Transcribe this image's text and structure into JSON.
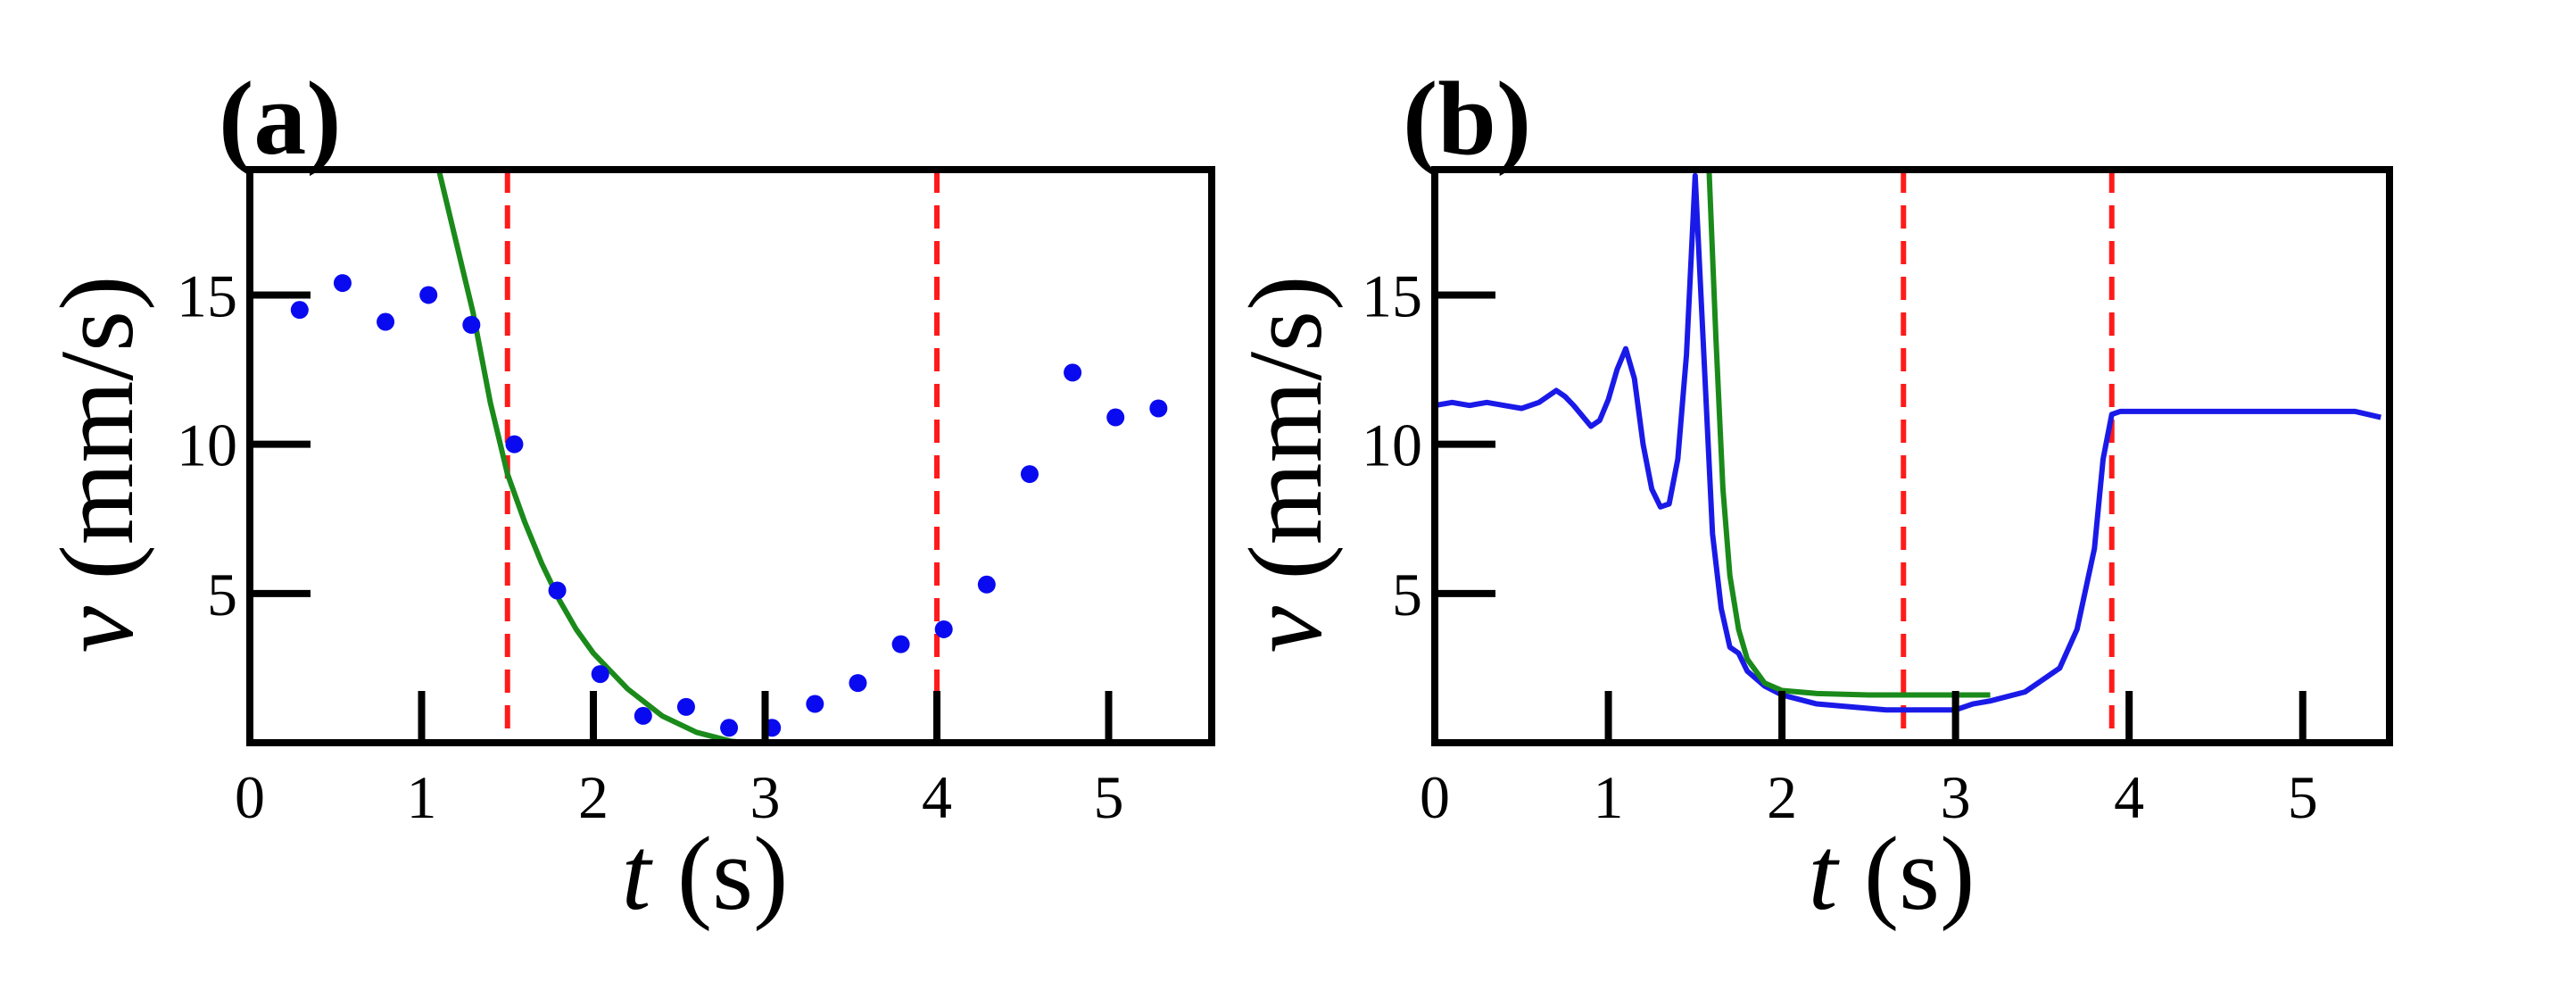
{
  "chart_data": [
    {
      "panel_label": "(a)",
      "type": "scatter",
      "xlabel_var": "t",
      "xlabel_unit": " (s)",
      "ylabel_var": "v",
      "ylabel_unit": " (mm/s)",
      "xlim": [
        0,
        5.6
      ],
      "ylim": [
        0,
        19.2
      ],
      "x_ticks": [
        0,
        1,
        2,
        3,
        4,
        5
      ],
      "x_tick_labels": [
        "0",
        "1",
        "2",
        "3",
        "4",
        "5"
      ],
      "y_ticks": [
        5,
        10,
        15
      ],
      "y_tick_labels": [
        "5",
        "10",
        "15"
      ],
      "grid": false,
      "colors": {
        "points": "#0a0af0",
        "fit": "#1a8a1a",
        "vlines": "#ff1a1a"
      },
      "points": {
        "x": [
          0.29,
          0.54,
          0.79,
          1.04,
          1.29,
          1.54,
          1.79,
          2.04,
          2.29,
          2.54,
          2.79,
          3.04,
          3.29,
          3.54,
          3.79,
          4.04,
          4.29,
          4.54,
          4.79,
          5.04,
          5.29
        ],
        "y": [
          14.5,
          15.4,
          14.1,
          15.0,
          14.0,
          10.0,
          5.1,
          2.3,
          0.9,
          1.2,
          0.5,
          0.5,
          1.3,
          2.0,
          3.3,
          3.8,
          5.3,
          9.0,
          12.4,
          10.9,
          11.2
        ]
      },
      "fit_curve": {
        "x": [
          1.1,
          1.2,
          1.3,
          1.4,
          1.5,
          1.6,
          1.7,
          1.8,
          1.9,
          2.0,
          2.2,
          2.4,
          2.6,
          2.8,
          2.9
        ],
        "y": [
          19.2,
          16.8,
          14.4,
          11.4,
          9.0,
          7.4,
          6.0,
          4.8,
          3.8,
          3.0,
          1.8,
          0.9,
          0.35,
          0.05,
          0.0
        ]
      },
      "vlines": [
        1.5,
        4.0
      ]
    },
    {
      "panel_label": "(b)",
      "type": "line",
      "xlabel_var": "t",
      "xlabel_unit": " (s)",
      "ylabel_var": "v",
      "ylabel_unit": " (mm/s)",
      "xlim": [
        0,
        5.5
      ],
      "ylim": [
        0,
        19.2
      ],
      "x_ticks": [
        0,
        1,
        2,
        3,
        4,
        5
      ],
      "x_tick_labels": [
        "0",
        "1",
        "2",
        "3",
        "4",
        "5"
      ],
      "y_ticks": [
        5,
        10,
        15
      ],
      "y_tick_labels": [
        "5",
        "10",
        "15"
      ],
      "grid": false,
      "colors": {
        "line": "#1a1ae8",
        "fit": "#1a8a1a",
        "vlines": "#ff1a1a"
      },
      "line": {
        "x": [
          0.0,
          0.1,
          0.2,
          0.3,
          0.4,
          0.5,
          0.6,
          0.7,
          0.75,
          0.8,
          0.9,
          0.95,
          1.0,
          1.05,
          1.1,
          1.15,
          1.2,
          1.25,
          1.3,
          1.35,
          1.4,
          1.45,
          1.5,
          1.55,
          1.6,
          1.65,
          1.7,
          1.75,
          1.8,
          1.9,
          2.0,
          2.2,
          2.4,
          2.6,
          2.8,
          3.0,
          3.1,
          3.2,
          3.4,
          3.6,
          3.7,
          3.8,
          3.85,
          3.9,
          3.95,
          4.2,
          4.5,
          4.8,
          5.1,
          5.3,
          5.45
        ],
        "y": [
          11.3,
          11.4,
          11.3,
          11.4,
          11.3,
          11.2,
          11.4,
          11.8,
          11.6,
          11.3,
          10.6,
          10.8,
          11.5,
          12.5,
          13.2,
          12.2,
          10.0,
          8.5,
          7.9,
          8.0,
          9.5,
          13.0,
          19.0,
          13.0,
          7.0,
          4.5,
          3.2,
          3.0,
          2.4,
          1.9,
          1.6,
          1.3,
          1.2,
          1.1,
          1.1,
          1.1,
          1.3,
          1.4,
          1.7,
          2.5,
          3.8,
          6.5,
          9.5,
          11.0,
          11.1,
          11.1,
          11.1,
          11.1,
          11.1,
          11.1,
          10.9
        ]
      },
      "fit_curve": {
        "x": [
          1.58,
          1.62,
          1.66,
          1.7,
          1.75,
          1.8,
          1.9,
          2.0,
          2.2,
          2.5,
          2.8,
          3.0,
          3.2
        ],
        "y": [
          19.2,
          13.5,
          8.5,
          5.6,
          3.8,
          2.8,
          2.0,
          1.75,
          1.65,
          1.6,
          1.6,
          1.6,
          1.6
        ]
      },
      "vlines": [
        2.7,
        3.9
      ]
    }
  ]
}
